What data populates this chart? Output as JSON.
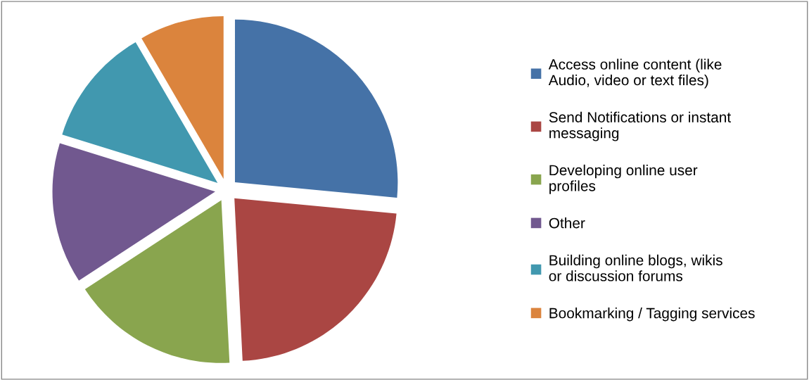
{
  "chart_data": {
    "type": "pie",
    "categories": [
      "Access online content (like Audio, video or text files)",
      "Send Notifications or instant messaging",
      "Developing online user profiles",
      "Other",
      "Building online blogs, wikis or discussion forums",
      "Bookmarking / Tagging services"
    ],
    "values": [
      26.5,
      22.7,
      16.6,
      14.0,
      11.8,
      8.4
    ],
    "colors": [
      "#4572a7",
      "#aa4643",
      "#89a54e",
      "#71588f",
      "#4198af",
      "#db843d"
    ],
    "legend": "right"
  }
}
